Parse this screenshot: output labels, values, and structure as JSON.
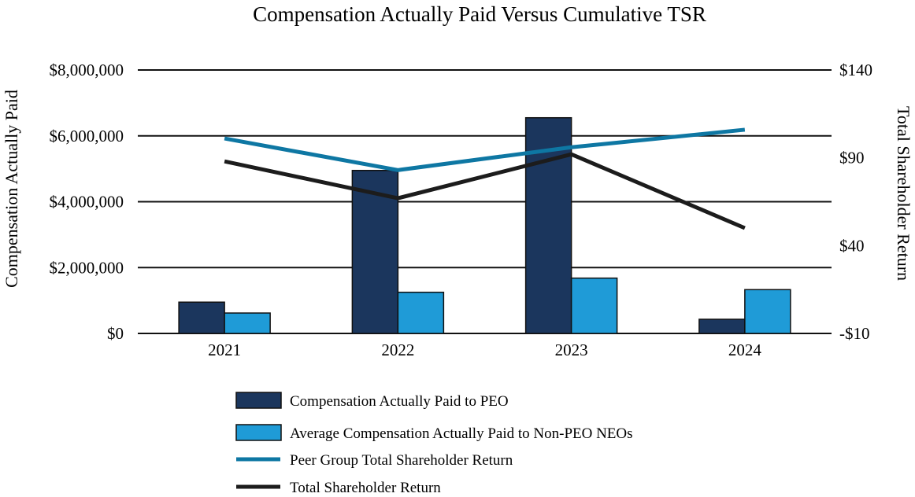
{
  "chart_data": {
    "type": "bar+line",
    "title": "Compensation Actually Paid Versus Cumulative TSR",
    "ylabel": "Compensation Actually Paid",
    "y2label": "Total Shareholder Return",
    "categories": [
      "2021",
      "2022",
      "2023",
      "2024"
    ],
    "ylim": [
      0,
      8000000
    ],
    "yticks": [
      0,
      2000000,
      4000000,
      6000000,
      8000000
    ],
    "ytick_labels": [
      "$0",
      "$2,000,000",
      "$4,000,000",
      "$6,000,000",
      "$8,000,000"
    ],
    "y2lim": [
      -10,
      140
    ],
    "y2ticks": [
      -10,
      40,
      90,
      140
    ],
    "y2tick_labels": [
      "-$10",
      "$40",
      "$90",
      "$140"
    ],
    "grid": true,
    "series": [
      {
        "name": "Compensation Actually Paid to PEO",
        "kind": "bar",
        "axis": "left",
        "color": "#1b365d",
        "values": [
          950000,
          4950000,
          6550000,
          430000
        ]
      },
      {
        "name": "Average Compensation Actually Paid to Non-PEO NEOs",
        "kind": "bar",
        "axis": "left",
        "color": "#1f9bd7",
        "values": [
          620000,
          1250000,
          1680000,
          1330000
        ]
      },
      {
        "name": "Peer Group Total Shareholder Return",
        "kind": "line",
        "axis": "right",
        "color": "#0e77a3",
        "values": [
          101,
          83,
          96,
          106
        ]
      },
      {
        "name": "Total Shareholder Return",
        "kind": "line",
        "axis": "right",
        "color": "#1c1c1c",
        "values": [
          88,
          67,
          92,
          50
        ]
      }
    ],
    "legend": "bottom"
  }
}
